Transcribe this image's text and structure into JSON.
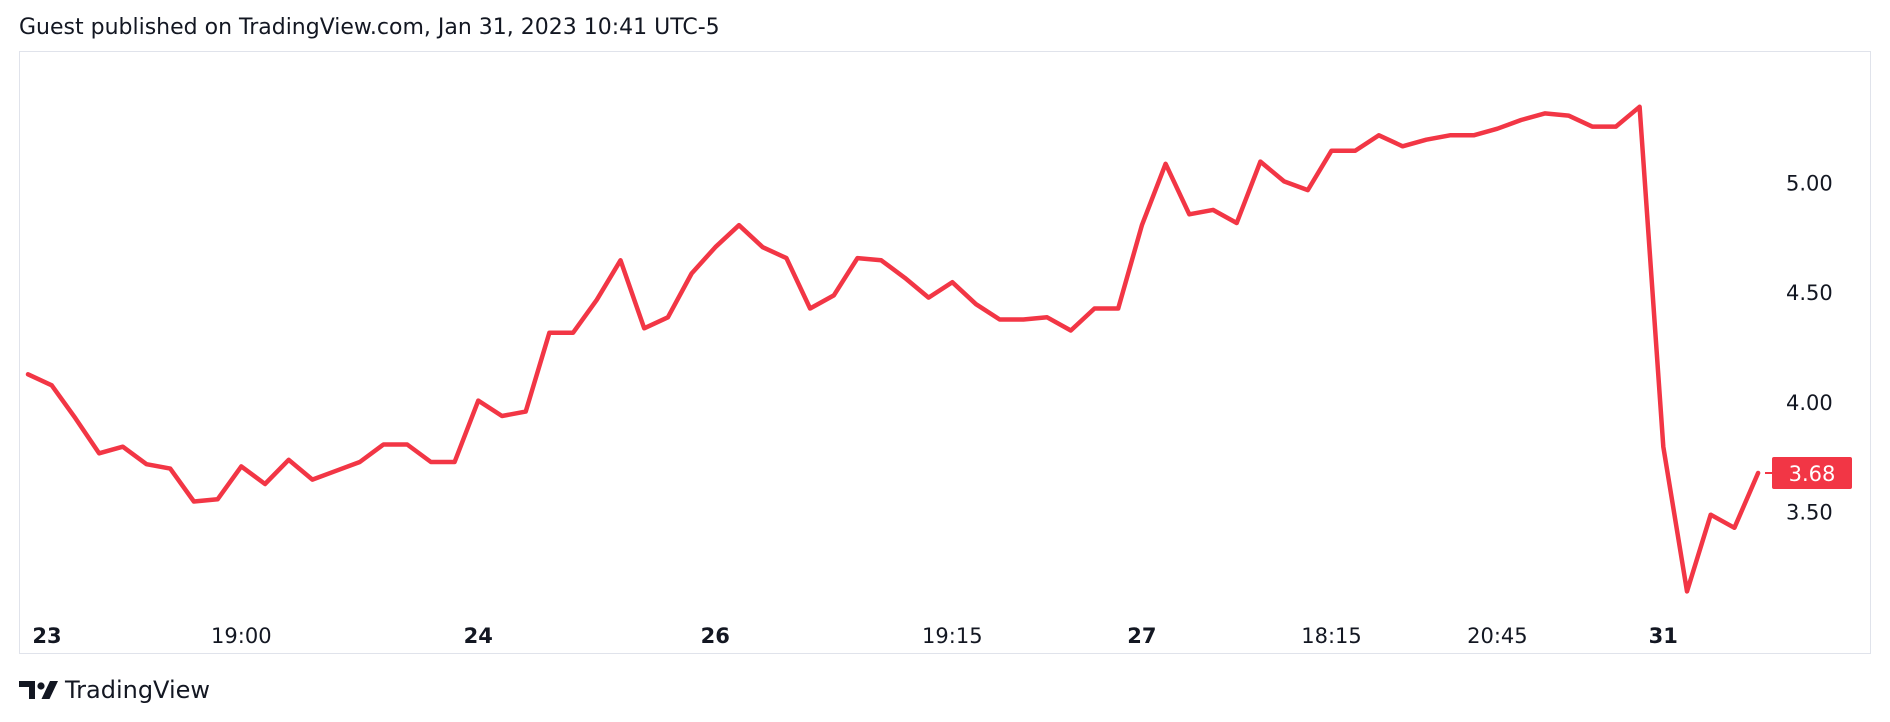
{
  "header": {
    "published_text": "Guest published on TradingView.com, Jan 31, 2023 10:41 UTC-5"
  },
  "footer": {
    "brand": "TradingView",
    "logo_icon": "tradingview-logo-icon"
  },
  "colors": {
    "line": "#f23645",
    "last_price_bg": "#f23645",
    "last_price_text": "#ffffff",
    "text": "#131722",
    "frame_border": "#e0e3eb"
  },
  "chart_data": {
    "type": "line",
    "title": "",
    "xlabel": "",
    "ylabel": "",
    "ylim": [
      2.85,
      5.6
    ],
    "y_ticks": [
      "5.00",
      "4.50",
      "4.00",
      "3.50"
    ],
    "x_ticks": [
      {
        "label": "23",
        "index": 0.8,
        "bold": true
      },
      {
        "label": "19:00",
        "index": 9.0,
        "bold": false
      },
      {
        "label": "24",
        "index": 19.0,
        "bold": true
      },
      {
        "label": "26",
        "index": 29.0,
        "bold": true
      },
      {
        "label": "19:15",
        "index": 39.0,
        "bold": false
      },
      {
        "label": "27",
        "index": 47.0,
        "bold": true
      },
      {
        "label": "18:15",
        "index": 55.0,
        "bold": false
      },
      {
        "label": "20:45",
        "index": 62.0,
        "bold": false
      },
      {
        "label": "31",
        "index": 69.0,
        "bold": true
      }
    ],
    "last_price": "3.68",
    "series": [
      {
        "values": [
          4.13,
          4.08,
          3.93,
          3.77,
          3.8,
          3.72,
          3.7,
          3.55,
          3.56,
          3.71,
          3.63,
          3.74,
          3.65,
          3.69,
          3.73,
          3.81,
          3.81,
          3.73,
          3.73,
          4.01,
          3.94,
          3.96,
          4.32,
          4.32,
          4.47,
          4.65,
          4.34,
          4.39,
          4.59,
          4.71,
          4.81,
          4.71,
          4.66,
          4.43,
          4.49,
          4.66,
          4.65,
          4.57,
          4.48,
          4.55,
          4.45,
          4.38,
          4.38,
          4.39,
          4.33,
          4.43,
          4.43,
          4.81,
          5.09,
          4.86,
          4.88,
          4.82,
          5.1,
          5.01,
          4.97,
          5.15,
          5.15,
          5.22,
          5.17,
          5.2,
          5.22,
          5.22,
          5.25,
          5.29,
          5.32,
          5.31,
          5.26,
          5.26,
          5.35,
          3.8,
          3.14,
          3.49,
          3.43,
          3.68
        ]
      }
    ]
  }
}
